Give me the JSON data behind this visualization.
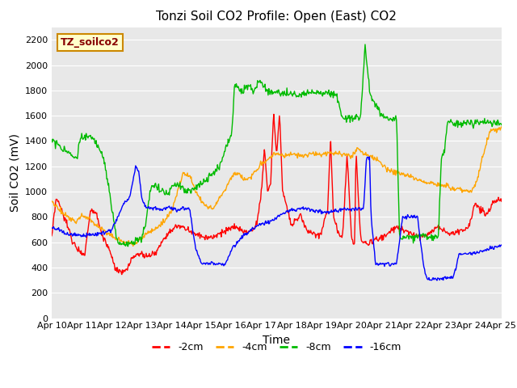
{
  "title": "Tonzi Soil CO2 Profile: Open (East) CO2",
  "xlabel": "Time",
  "ylabel": "Soil CO2 (mV)",
  "xlim": [
    0,
    15
  ],
  "ylim": [
    0,
    2300
  ],
  "yticks": [
    0,
    200,
    400,
    600,
    800,
    1000,
    1200,
    1400,
    1600,
    1800,
    2000,
    2200
  ],
  "xtick_labels": [
    "Apr 10",
    "Apr 11",
    "Apr 12",
    "Apr 13",
    "Apr 14",
    "Apr 15",
    "Apr 16",
    "Apr 17",
    "Apr 18",
    "Apr 19",
    "Apr 20",
    "Apr 21",
    "Apr 22",
    "Apr 23",
    "Apr 24",
    "Apr 25"
  ],
  "colors": {
    "-2cm": "#ff0000",
    "-4cm": "#ffa500",
    "-8cm": "#00bb00",
    "-16cm": "#0000ff"
  },
  "legend_label": "TZ_soilco2",
  "background_color": "#e8e8e8",
  "title_fontsize": 11,
  "axis_label_fontsize": 10,
  "tick_fontsize": 8
}
